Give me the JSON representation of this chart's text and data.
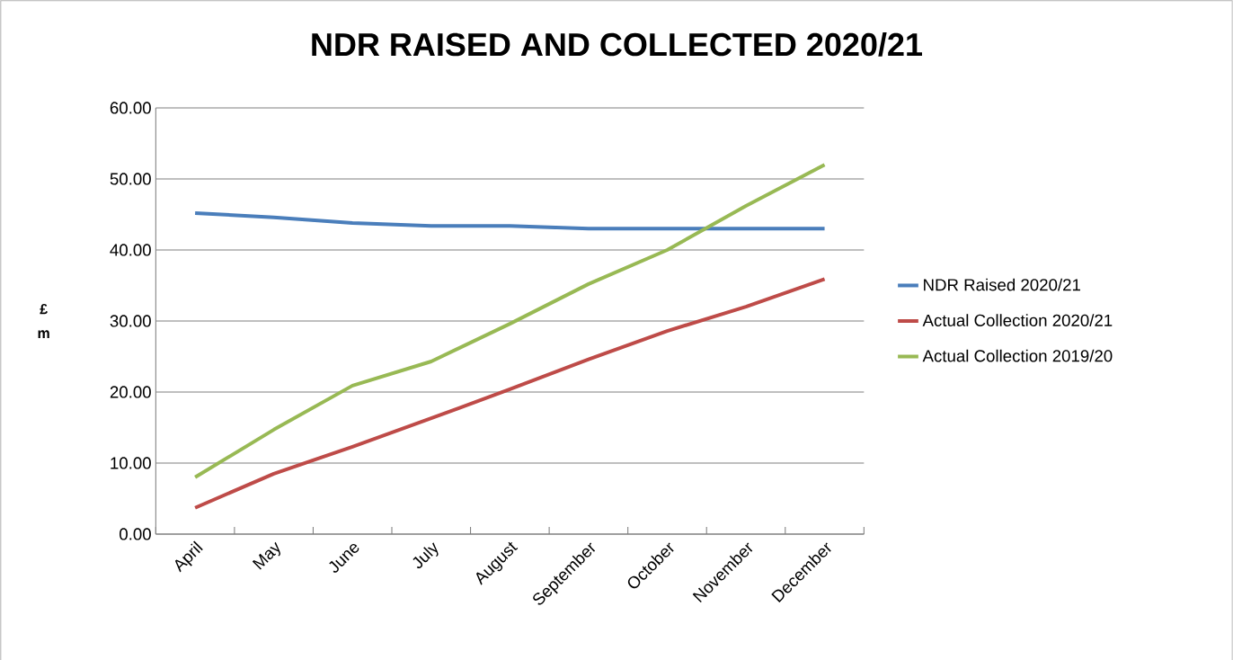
{
  "chart_data": {
    "type": "line",
    "title": "NDR RAISED AND COLLECTED 2020/21",
    "ylabel": "£ m",
    "categories": [
      "April",
      "May",
      "June",
      "July",
      "August",
      "September",
      "October",
      "November",
      "December"
    ],
    "series": [
      {
        "name": "NDR Raised 2020/21",
        "color": "#4a7ebb",
        "values": [
          45.2,
          44.6,
          43.8,
          43.4,
          43.4,
          43.0,
          43.0,
          43.0,
          43.0
        ]
      },
      {
        "name": "Actual Collection 2020/21",
        "color": "#be4b48",
        "values": [
          3.7,
          8.5,
          12.3,
          16.3,
          20.4,
          24.6,
          28.6,
          32.0,
          35.9
        ]
      },
      {
        "name": "Actual Collection 2019/20",
        "color": "#98b954",
        "values": [
          8.0,
          14.7,
          20.9,
          24.3,
          29.6,
          35.2,
          40.0,
          46.2,
          52.0
        ]
      }
    ],
    "ylim": [
      0,
      60
    ],
    "yticks": [
      {
        "value": 0,
        "label": "0.00"
      },
      {
        "value": 10,
        "label": "10.00"
      },
      {
        "value": 20,
        "label": "20.00"
      },
      {
        "value": 30,
        "label": "30.00"
      },
      {
        "value": 40,
        "label": "40.00"
      },
      {
        "value": 50,
        "label": "50.00"
      },
      {
        "value": 60,
        "label": "60.00"
      }
    ],
    "grid": "y",
    "legend": "right"
  }
}
